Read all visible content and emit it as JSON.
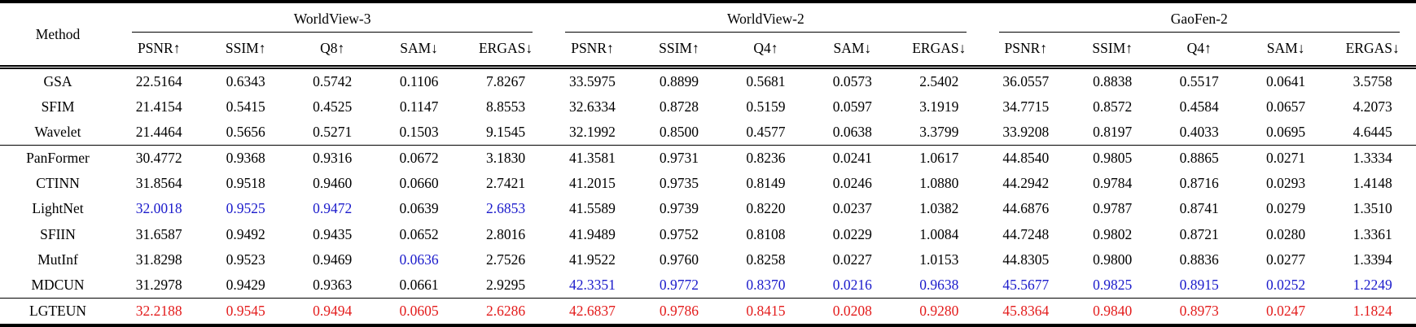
{
  "table": {
    "method_header": "Method",
    "colors": {
      "best": "#e31b1b",
      "second_best": "#1a1acb",
      "text": "#000000"
    },
    "groups": [
      {
        "name": "WorldView-3",
        "metrics": [
          "PSNR↑",
          "SSIM↑",
          "Q8↑",
          "SAM↓",
          "ERGAS↓"
        ]
      },
      {
        "name": "WorldView-2",
        "metrics": [
          "PSNR↑",
          "SSIM↑",
          "Q4↑",
          "SAM↓",
          "ERGAS↓"
        ]
      },
      {
        "name": "GaoFen-2",
        "metrics": [
          "PSNR↑",
          "SSIM↑",
          "Q4↑",
          "SAM↓",
          "ERGAS↓"
        ]
      }
    ],
    "row_groups": [
      {
        "rows": [
          {
            "method": "GSA",
            "values": [
              "22.5164",
              "0.6343",
              "0.5742",
              "0.1106",
              "7.8267",
              "33.5975",
              "0.8899",
              "0.5681",
              "0.0573",
              "2.5402",
              "36.0557",
              "0.8838",
              "0.5517",
              "0.0641",
              "3.5758"
            ]
          },
          {
            "method": "SFIM",
            "values": [
              "21.4154",
              "0.5415",
              "0.4525",
              "0.1147",
              "8.8553",
              "32.6334",
              "0.8728",
              "0.5159",
              "0.0597",
              "3.1919",
              "34.7715",
              "0.8572",
              "0.4584",
              "0.0657",
              "4.2073"
            ]
          },
          {
            "method": "Wavelet",
            "values": [
              "21.4464",
              "0.5656",
              "0.5271",
              "0.1503",
              "9.1545",
              "32.1992",
              "0.8500",
              "0.4577",
              "0.0638",
              "3.3799",
              "33.9208",
              "0.8197",
              "0.4033",
              "0.0695",
              "4.6445"
            ]
          }
        ]
      },
      {
        "rows": [
          {
            "method": "PanFormer",
            "values": [
              "30.4772",
              "0.9368",
              "0.9316",
              "0.0672",
              "3.1830",
              "41.3581",
              "0.9731",
              "0.8236",
              "0.0241",
              "1.0617",
              "44.8540",
              "0.9805",
              "0.8865",
              "0.0271",
              "1.3334"
            ]
          },
          {
            "method": "CTINN",
            "values": [
              "31.8564",
              "0.9518",
              "0.9460",
              "0.0660",
              "2.7421",
              "41.2015",
              "0.9735",
              "0.8149",
              "0.0246",
              "1.0880",
              "44.2942",
              "0.9784",
              "0.8716",
              "0.0293",
              "1.4148"
            ]
          },
          {
            "method": "LightNet",
            "values": [
              "32.0018",
              "0.9525",
              "0.9472",
              "0.0639",
              "2.6853",
              "41.5589",
              "0.9739",
              "0.8220",
              "0.0237",
              "1.0382",
              "44.6876",
              "0.9787",
              "0.8741",
              "0.0279",
              "1.3510"
            ],
            "blue_cols": [
              0,
              1,
              2,
              4
            ]
          },
          {
            "method": "SFIIN",
            "values": [
              "31.6587",
              "0.9492",
              "0.9435",
              "0.0652",
              "2.8016",
              "41.9489",
              "0.9752",
              "0.8108",
              "0.0229",
              "1.0084",
              "44.7248",
              "0.9802",
              "0.8721",
              "0.0280",
              "1.3361"
            ]
          },
          {
            "method": "MutInf",
            "values": [
              "31.8298",
              "0.9523",
              "0.9469",
              "0.0636",
              "2.7526",
              "41.9522",
              "0.9760",
              "0.8258",
              "0.0227",
              "1.0153",
              "44.8305",
              "0.9800",
              "0.8836",
              "0.0277",
              "1.3394"
            ],
            "blue_cols": [
              3
            ]
          },
          {
            "method": "MDCUN",
            "values": [
              "31.2978",
              "0.9429",
              "0.9363",
              "0.0661",
              "2.9295",
              "42.3351",
              "0.9772",
              "0.8370",
              "0.0216",
              "0.9638",
              "45.5677",
              "0.9825",
              "0.8915",
              "0.0252",
              "1.2249"
            ],
            "blue_cols": [
              5,
              6,
              7,
              8,
              9,
              10,
              11,
              12,
              13,
              14
            ]
          }
        ]
      },
      {
        "rows": [
          {
            "method": "LGTEUN",
            "values": [
              "32.2188",
              "0.9545",
              "0.9494",
              "0.0605",
              "2.6286",
              "42.6837",
              "0.9786",
              "0.8415",
              "0.0208",
              "0.9280",
              "45.8364",
              "0.9840",
              "0.8973",
              "0.0247",
              "1.1824"
            ],
            "red_cols": [
              0,
              1,
              2,
              3,
              4,
              5,
              6,
              7,
              8,
              9,
              10,
              11,
              12,
              13,
              14
            ]
          }
        ]
      }
    ]
  }
}
